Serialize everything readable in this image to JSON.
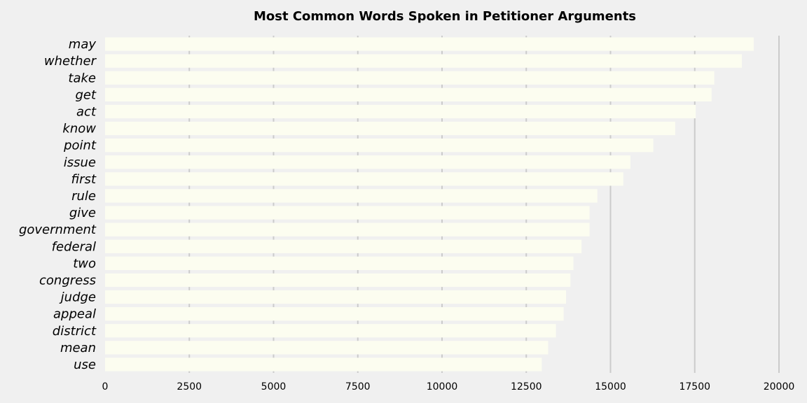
{
  "chart_data": {
    "type": "bar",
    "orientation": "horizontal",
    "title": "Most Common Words Spoken in Petitioner Arguments",
    "xlabel": "",
    "ylabel": "",
    "categories": [
      "may",
      "whether",
      "take",
      "get",
      "act",
      "know",
      "point",
      "issue",
      "first",
      "rule",
      "give",
      "government",
      "federal",
      "two",
      "congress",
      "judge",
      "appeal",
      "district",
      "mean",
      "use"
    ],
    "values": [
      19250,
      18900,
      18080,
      18000,
      17530,
      16920,
      16270,
      15590,
      15380,
      14610,
      14380,
      14380,
      14140,
      13900,
      13810,
      13680,
      13610,
      13380,
      13150,
      12960
    ],
    "xlim": [
      0,
      20000
    ],
    "xticks": [
      0,
      2500,
      5000,
      7500,
      10000,
      12500,
      15000,
      17500,
      20000
    ],
    "grid": true,
    "colors": {
      "background": "#f0f0f0",
      "bar": "#fcfdf0",
      "grid": "#cbcbcb"
    }
  }
}
